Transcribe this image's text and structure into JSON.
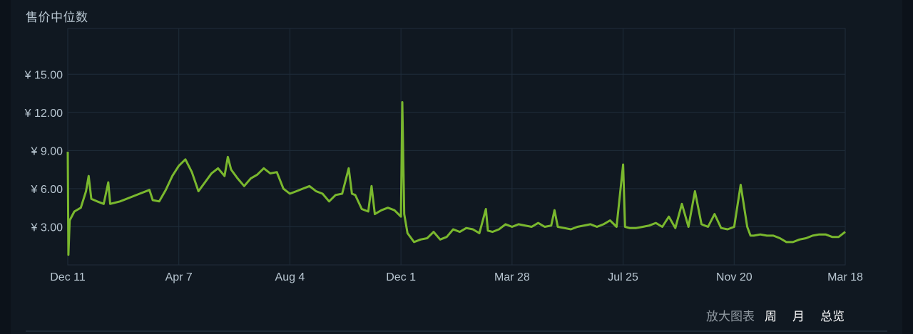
{
  "chart_title": "售价中位数",
  "controls": {
    "zoom_label": "放大图表",
    "week": "周",
    "month": "月",
    "overview": "总览"
  },
  "colors": {
    "background": "#101821",
    "grid": "#1f2c3a",
    "line": "#7ab82e",
    "text": "#b8c6d1"
  },
  "chart_data": {
    "type": "line",
    "title": "售价中位数",
    "xlabel": "",
    "ylabel": "",
    "currency_prefix": "¥ ",
    "y_ticks": [
      3.0,
      6.0,
      9.0,
      12.0,
      15.0
    ],
    "y_tick_labels": [
      "¥ 3.00",
      "¥ 6.00",
      "¥ 9.00",
      "¥ 12.00",
      "¥ 15.00"
    ],
    "ylim": [
      0,
      18.6
    ],
    "x_tick_labels": [
      "Dec 11",
      "Apr 7",
      "Aug 4",
      "Dec 1",
      "Mar 28",
      "Jul 25",
      "Nov 20",
      "Mar 18"
    ],
    "x_ticks_week": [
      0,
      17,
      34,
      51,
      68,
      85,
      102,
      119
    ],
    "xlim": [
      0,
      119
    ],
    "grid": true,
    "series": [
      {
        "values": [
          [
            0,
            8.9
          ],
          [
            0.1,
            0.8
          ],
          [
            0.3,
            3.5
          ],
          [
            1,
            4.2
          ],
          [
            2,
            4.5
          ],
          [
            2.8,
            5.8
          ],
          [
            3.2,
            7.0
          ],
          [
            3.6,
            5.2
          ],
          [
            4.5,
            5.0
          ],
          [
            5.5,
            4.8
          ],
          [
            6.2,
            6.5
          ],
          [
            6.5,
            4.8
          ],
          [
            8,
            5.0
          ],
          [
            10,
            5.4
          ],
          [
            11,
            5.6
          ],
          [
            12.5,
            5.9
          ],
          [
            13,
            5.1
          ],
          [
            14,
            5.0
          ],
          [
            15,
            5.9
          ],
          [
            16,
            7.0
          ],
          [
            17,
            7.8
          ],
          [
            18,
            8.3
          ],
          [
            19,
            7.3
          ],
          [
            20,
            5.8
          ],
          [
            21,
            6.5
          ],
          [
            22,
            7.2
          ],
          [
            23,
            7.6
          ],
          [
            24,
            7.0
          ],
          [
            24.5,
            8.5
          ],
          [
            25,
            7.5
          ],
          [
            26,
            6.8
          ],
          [
            27,
            6.2
          ],
          [
            28,
            6.8
          ],
          [
            29,
            7.1
          ],
          [
            30,
            7.6
          ],
          [
            31,
            7.2
          ],
          [
            32,
            7.3
          ],
          [
            33,
            6.0
          ],
          [
            34,
            5.6
          ],
          [
            35,
            5.8
          ],
          [
            36,
            6.0
          ],
          [
            37,
            6.2
          ],
          [
            38,
            5.8
          ],
          [
            39,
            5.6
          ],
          [
            40,
            5.0
          ],
          [
            41,
            5.5
          ],
          [
            42,
            5.6
          ],
          [
            43,
            7.6
          ],
          [
            43.5,
            5.6
          ],
          [
            44,
            5.5
          ],
          [
            45,
            4.4
          ],
          [
            46,
            4.2
          ],
          [
            46.5,
            6.2
          ],
          [
            47,
            4.0
          ],
          [
            48,
            4.3
          ],
          [
            49,
            4.5
          ],
          [
            50,
            4.3
          ],
          [
            51,
            3.8
          ],
          [
            51.2,
            12.8
          ],
          [
            51.5,
            4.0
          ],
          [
            52,
            2.5
          ],
          [
            53,
            1.8
          ],
          [
            54,
            2.0
          ],
          [
            55,
            2.1
          ],
          [
            56,
            2.6
          ],
          [
            57,
            2.0
          ],
          [
            58,
            2.2
          ],
          [
            59,
            2.8
          ],
          [
            60,
            2.6
          ],
          [
            61,
            2.9
          ],
          [
            62,
            2.8
          ],
          [
            63,
            2.5
          ],
          [
            64,
            4.4
          ],
          [
            64.3,
            2.7
          ],
          [
            65,
            2.6
          ],
          [
            66,
            2.8
          ],
          [
            67,
            3.2
          ],
          [
            68,
            3.0
          ],
          [
            69,
            3.2
          ],
          [
            70,
            3.1
          ],
          [
            71,
            3.0
          ],
          [
            72,
            3.3
          ],
          [
            73,
            3.0
          ],
          [
            74,
            3.1
          ],
          [
            74.5,
            4.3
          ],
          [
            75,
            3.0
          ],
          [
            76,
            2.9
          ],
          [
            77,
            2.8
          ],
          [
            78,
            3.0
          ],
          [
            79,
            3.1
          ],
          [
            80,
            3.2
          ],
          [
            81,
            3.0
          ],
          [
            82,
            3.2
          ],
          [
            83,
            3.5
          ],
          [
            84,
            3.0
          ],
          [
            85,
            7.9
          ],
          [
            85.3,
            3.0
          ],
          [
            86,
            2.9
          ],
          [
            87,
            2.9
          ],
          [
            88,
            3.0
          ],
          [
            89,
            3.1
          ],
          [
            90,
            3.3
          ],
          [
            91,
            3.0
          ],
          [
            92,
            3.8
          ],
          [
            93,
            2.9
          ],
          [
            94,
            4.8
          ],
          [
            95,
            3.0
          ],
          [
            96,
            5.8
          ],
          [
            97,
            3.2
          ],
          [
            98,
            3.0
          ],
          [
            99,
            4.0
          ],
          [
            100,
            2.9
          ],
          [
            101,
            2.8
          ],
          [
            102,
            3.0
          ],
          [
            103,
            6.3
          ],
          [
            104,
            3.0
          ],
          [
            104.5,
            2.3
          ],
          [
            105,
            2.3
          ],
          [
            106,
            2.4
          ],
          [
            107,
            2.3
          ],
          [
            108,
            2.3
          ],
          [
            109,
            2.1
          ],
          [
            110,
            1.8
          ],
          [
            111,
            1.8
          ],
          [
            112,
            2.0
          ],
          [
            113,
            2.1
          ],
          [
            114,
            2.3
          ],
          [
            115,
            2.4
          ],
          [
            116,
            2.4
          ],
          [
            117,
            2.2
          ],
          [
            118,
            2.2
          ],
          [
            119,
            2.6
          ]
        ]
      }
    ]
  }
}
